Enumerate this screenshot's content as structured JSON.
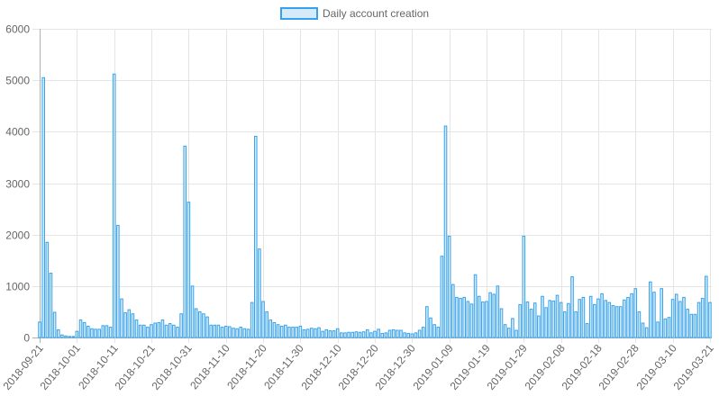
{
  "chart_data": {
    "type": "bar",
    "legend": {
      "label": "Daily account creation",
      "position": "top"
    },
    "colors": {
      "bar_fill": "#d5ebf9",
      "bar_stroke": "#36a2eb",
      "grid": "#e5e5e5",
      "axis": "#b0b0b0",
      "text": "#666666"
    },
    "grid": true,
    "ylim": [
      0,
      6000
    ],
    "yticks": [
      0,
      1000,
      2000,
      3000,
      4000,
      5000,
      6000
    ],
    "x_start": "2018-09-21",
    "x_end": "2019-03-21",
    "xtick_labels": [
      "2018-09-21",
      "2018-10-01",
      "2018-10-11",
      "2018-10-21",
      "2018-10-31",
      "2018-11-10",
      "2018-11-20",
      "2018-11-30",
      "2018-12-10",
      "2018-12-20",
      "2018-12-30",
      "2019-01-09",
      "2019-01-19",
      "2019-01-29",
      "2019-02-08",
      "2019-02-18",
      "2019-02-28",
      "2019-03-10",
      "2019-03-21"
    ],
    "values": [
      300,
      5050,
      1850,
      1250,
      490,
      150,
      50,
      30,
      20,
      20,
      120,
      340,
      290,
      220,
      170,
      160,
      160,
      230,
      230,
      200,
      5120,
      2180,
      750,
      480,
      540,
      460,
      340,
      240,
      240,
      200,
      250,
      280,
      290,
      340,
      240,
      270,
      240,
      200,
      460,
      3720,
      2630,
      1000,
      560,
      500,
      460,
      400,
      240,
      240,
      240,
      200,
      220,
      210,
      180,
      170,
      200,
      170,
      160,
      680,
      3910,
      1720,
      700,
      500,
      340,
      290,
      250,
      220,
      240,
      200,
      200,
      200,
      220,
      150,
      160,
      180,
      170,
      190,
      120,
      150,
      130,
      130,
      170,
      90,
      90,
      100,
      100,
      110,
      100,
      110,
      150,
      90,
      120,
      160,
      80,
      90,
      140,
      150,
      140,
      140,
      90,
      80,
      70,
      90,
      140,
      200,
      600,
      380,
      250,
      200,
      1580,
      4110,
      1970,
      1030,
      780,
      760,
      780,
      700,
      650,
      1220,
      800,
      690,
      700,
      870,
      840,
      1000,
      560,
      250,
      180,
      370,
      140,
      640,
      1970,
      690,
      550,
      670,
      420,
      800,
      580,
      720,
      710,
      820,
      680,
      500,
      660,
      1180,
      500,
      740,
      780,
      270,
      800,
      640,
      750,
      850,
      720,
      680,
      620,
      600,
      600,
      730,
      780,
      850,
      950,
      500,
      280,
      190,
      1080,
      880,
      300,
      950,
      360,
      390,
      740,
      840,
      700,
      780,
      550,
      450,
      450,
      680,
      760,
      1190,
      680
    ]
  }
}
